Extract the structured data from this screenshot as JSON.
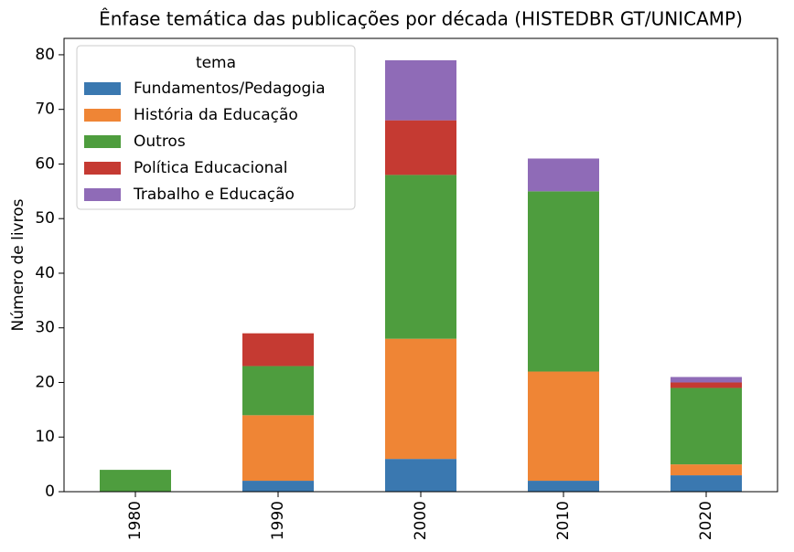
{
  "chart_data": {
    "type": "stacked_bar",
    "title": "Ênfase temática das publicações por década (HISTEDBR GT/UNICAMP)",
    "y_label": "Número de livros",
    "categories": [
      "1980",
      "1990",
      "2000",
      "2010",
      "2020"
    ],
    "series": [
      {
        "name": "Fundamentos/Pedagogia",
        "color": "#3a78b0",
        "values": [
          0,
          2,
          6,
          2,
          3
        ]
      },
      {
        "name": "História da Educação",
        "color": "#ef8535",
        "values": [
          0,
          12,
          22,
          20,
          2
        ]
      },
      {
        "name": "Outros",
        "color": "#4e9d3e",
        "values": [
          4,
          9,
          30,
          33,
          14
        ]
      },
      {
        "name": "Política Educacional",
        "color": "#c53a32",
        "values": [
          0,
          6,
          10,
          0,
          1
        ]
      },
      {
        "name": "Trabalho e Educação",
        "color": "#8f6bb7",
        "values": [
          0,
          0,
          11,
          6,
          1
        ]
      }
    ],
    "legend_title": "tema",
    "legend": "upper left",
    "ylim": [
      0,
      83
    ],
    "yticks": [
      0,
      10,
      20,
      30,
      40,
      50,
      60,
      70,
      80
    ]
  }
}
